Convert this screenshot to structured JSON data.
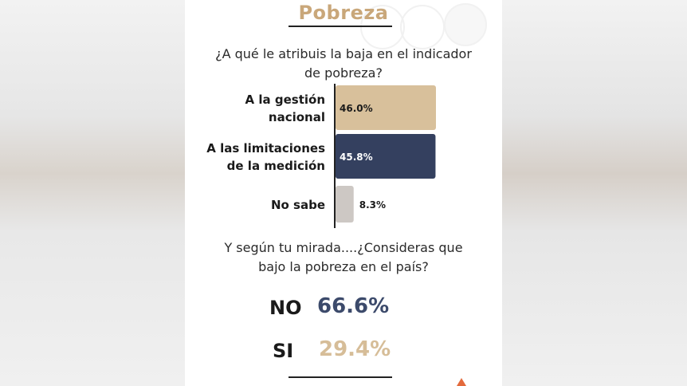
{
  "title": "Pobreza",
  "question1": [
    "¿A qué le atribuis la baja en el indicador",
    "de pobreza?"
  ],
  "chart_data": {
    "type": "bar",
    "orientation": "horizontal",
    "categories": [
      [
        "A la gestión",
        "nacional"
      ],
      [
        "A las limitaciones",
        "de la medición"
      ],
      [
        "No sabe"
      ]
    ],
    "values": [
      46.0,
      45.8,
      8.3
    ],
    "value_labels": [
      "46.0%",
      "45.8%",
      "8.3%"
    ],
    "colors": [
      "#d8c09b",
      "#34405f",
      "#cdc8c4"
    ],
    "xlim": [
      0,
      100
    ],
    "grid": false
  },
  "question2": [
    "Y según tu mirada....¿Consideras que",
    "bajo la pobreza en el país?"
  ],
  "results": [
    {
      "label": "NO",
      "value": "66.6%",
      "color": "#3c4a6b"
    },
    {
      "label": "SI",
      "value": "29.4%",
      "color": "#d6bd98"
    }
  ]
}
